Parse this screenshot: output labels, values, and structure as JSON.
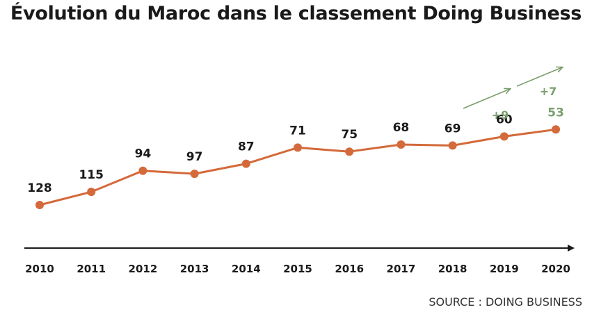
{
  "chart_data": {
    "type": "line",
    "title": "Évolution du Maroc dans le classement Doing Business",
    "x": [
      "2010",
      "2011",
      "2012",
      "2013",
      "2014",
      "2015",
      "2016",
      "2017",
      "2018",
      "2019",
      "2020"
    ],
    "series": [
      {
        "values": [
          128,
          115,
          94,
          97,
          87,
          71,
          75,
          68,
          69,
          60,
          53
        ]
      }
    ],
    "annotations": [
      "+9",
      "+7"
    ],
    "xlabel": "",
    "ylabel": "",
    "grid": false,
    "legend": "none",
    "colors": {
      "line": "#d4693a",
      "text": "#1a1a1a",
      "highlight": "#7a9e6b",
      "axis": "#1a1a1a"
    }
  },
  "source": "SOURCE : DOING BUSINESS"
}
